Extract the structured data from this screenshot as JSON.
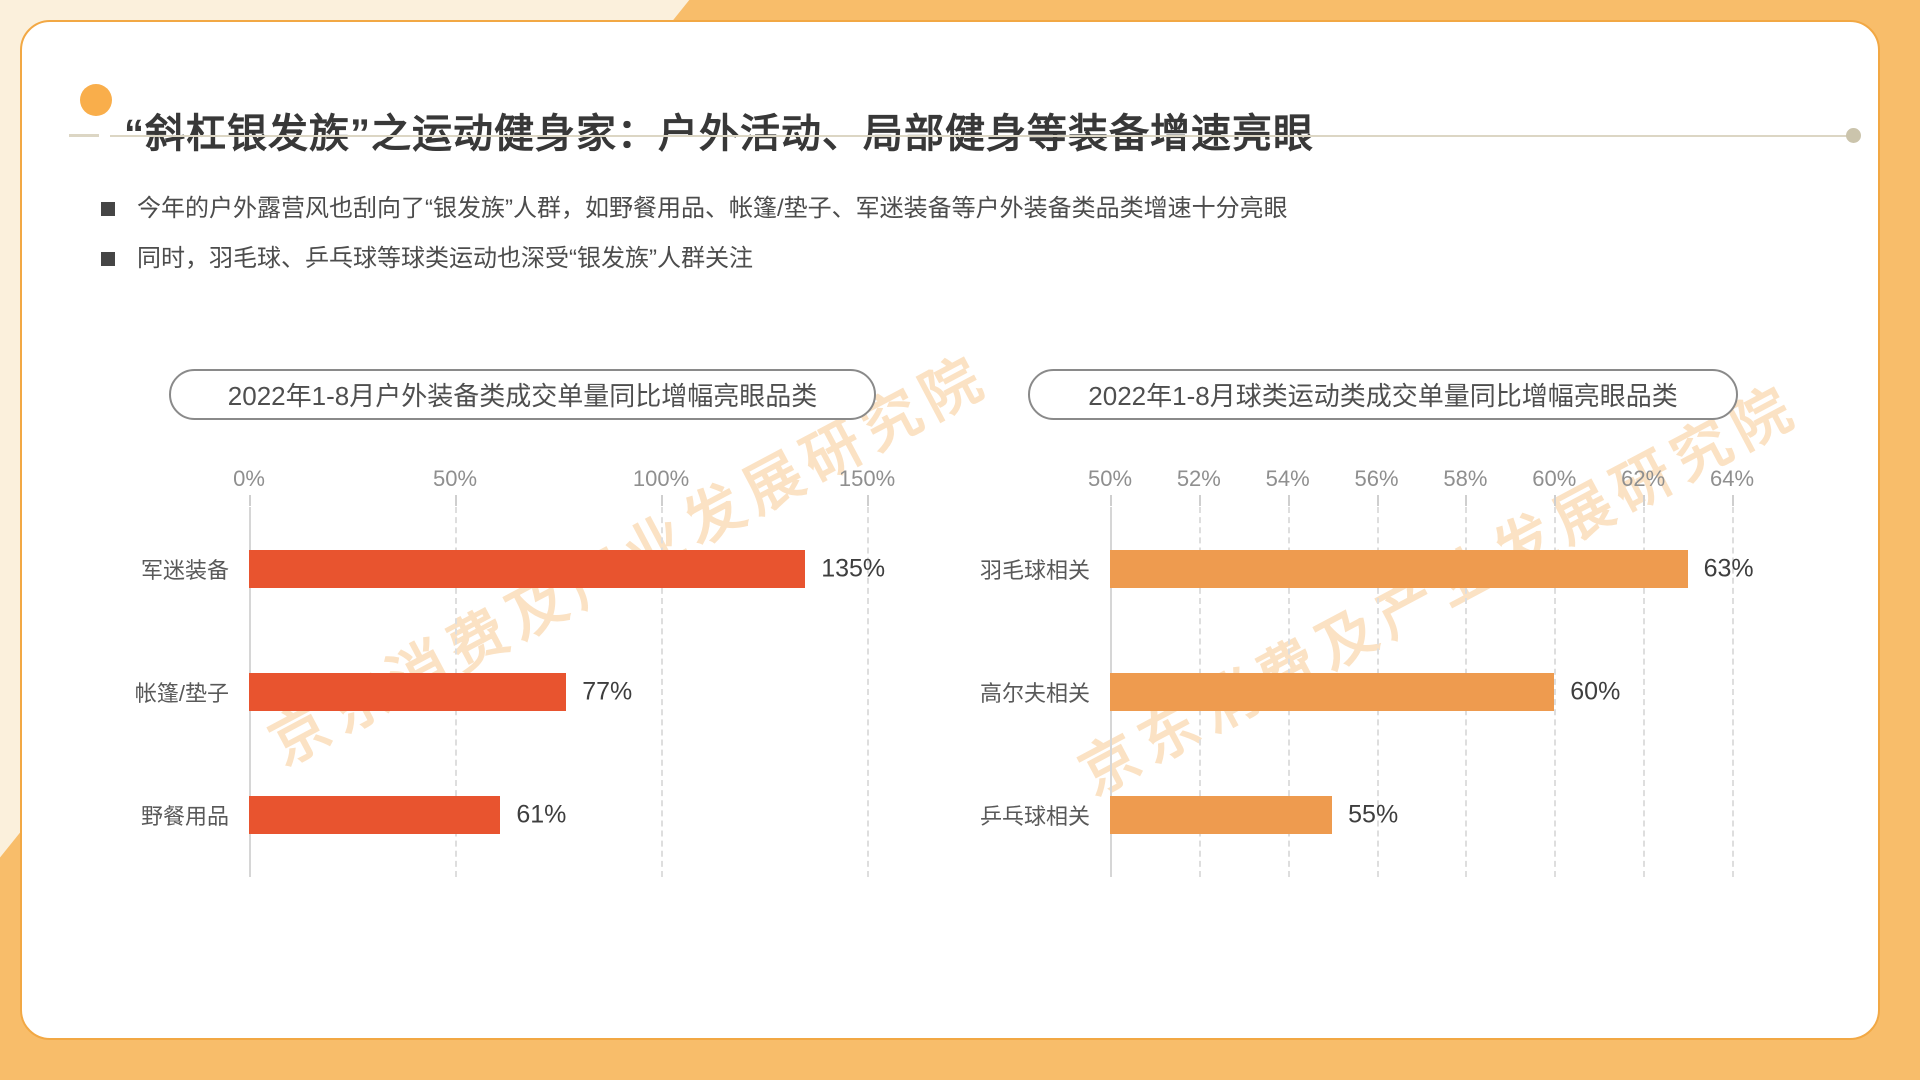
{
  "page": {
    "title": "“斜杠银发族”之运动健身家：户外活动、局部健身等装备增速亮眼",
    "bullets": [
      "今年的户外露营风也刮向了“银发族”人群，如野餐用品、帐篷/垫子、军迷装备等户外装备类品类增速十分亮眼",
      "同时，羽毛球、乒乓球等球类运动也深受“银发族”人群关注"
    ],
    "watermark": "京东消费及产业发展研究院"
  },
  "colors": {
    "frame_orange": "#F8BD6A",
    "frame_cream": "#FBF0DC",
    "accent_dot": "#F9AE4B",
    "outdoor_bar": "#E8542F",
    "ball_bar": "#EE9B4F"
  },
  "chart_data": [
    {
      "type": "bar",
      "orientation": "horizontal",
      "title": "2022年1-8月户外装备类成交单量同比增幅亮眼品类",
      "categories": [
        "军迷装备",
        "帐篷/垫子",
        "野餐用品"
      ],
      "values": [
        135,
        77,
        61
      ],
      "value_labels": [
        "135%",
        "77%",
        "61%"
      ],
      "axis": {
        "min": 0,
        "max": 150,
        "step": 50,
        "tick_labels": [
          "0%",
          "50%",
          "100%",
          "150%"
        ]
      },
      "bar_color": "#E8542F",
      "grid": "dashed-vertical",
      "legend": "none"
    },
    {
      "type": "bar",
      "orientation": "horizontal",
      "title": "2022年1-8月球类运动类成交单量同比增幅亮眼品类",
      "categories": [
        "羽毛球相关",
        "高尔夫相关",
        "乒乓球相关"
      ],
      "values": [
        63,
        60,
        55
      ],
      "value_labels": [
        "63%",
        "60%",
        "55%"
      ],
      "axis": {
        "min": 50,
        "max": 64,
        "step": 2,
        "tick_labels": [
          "50%",
          "52%",
          "54%",
          "56%",
          "58%",
          "60%",
          "62%",
          "64%"
        ]
      },
      "bar_color": "#EE9B4F",
      "grid": "dashed-vertical",
      "legend": "none"
    }
  ]
}
